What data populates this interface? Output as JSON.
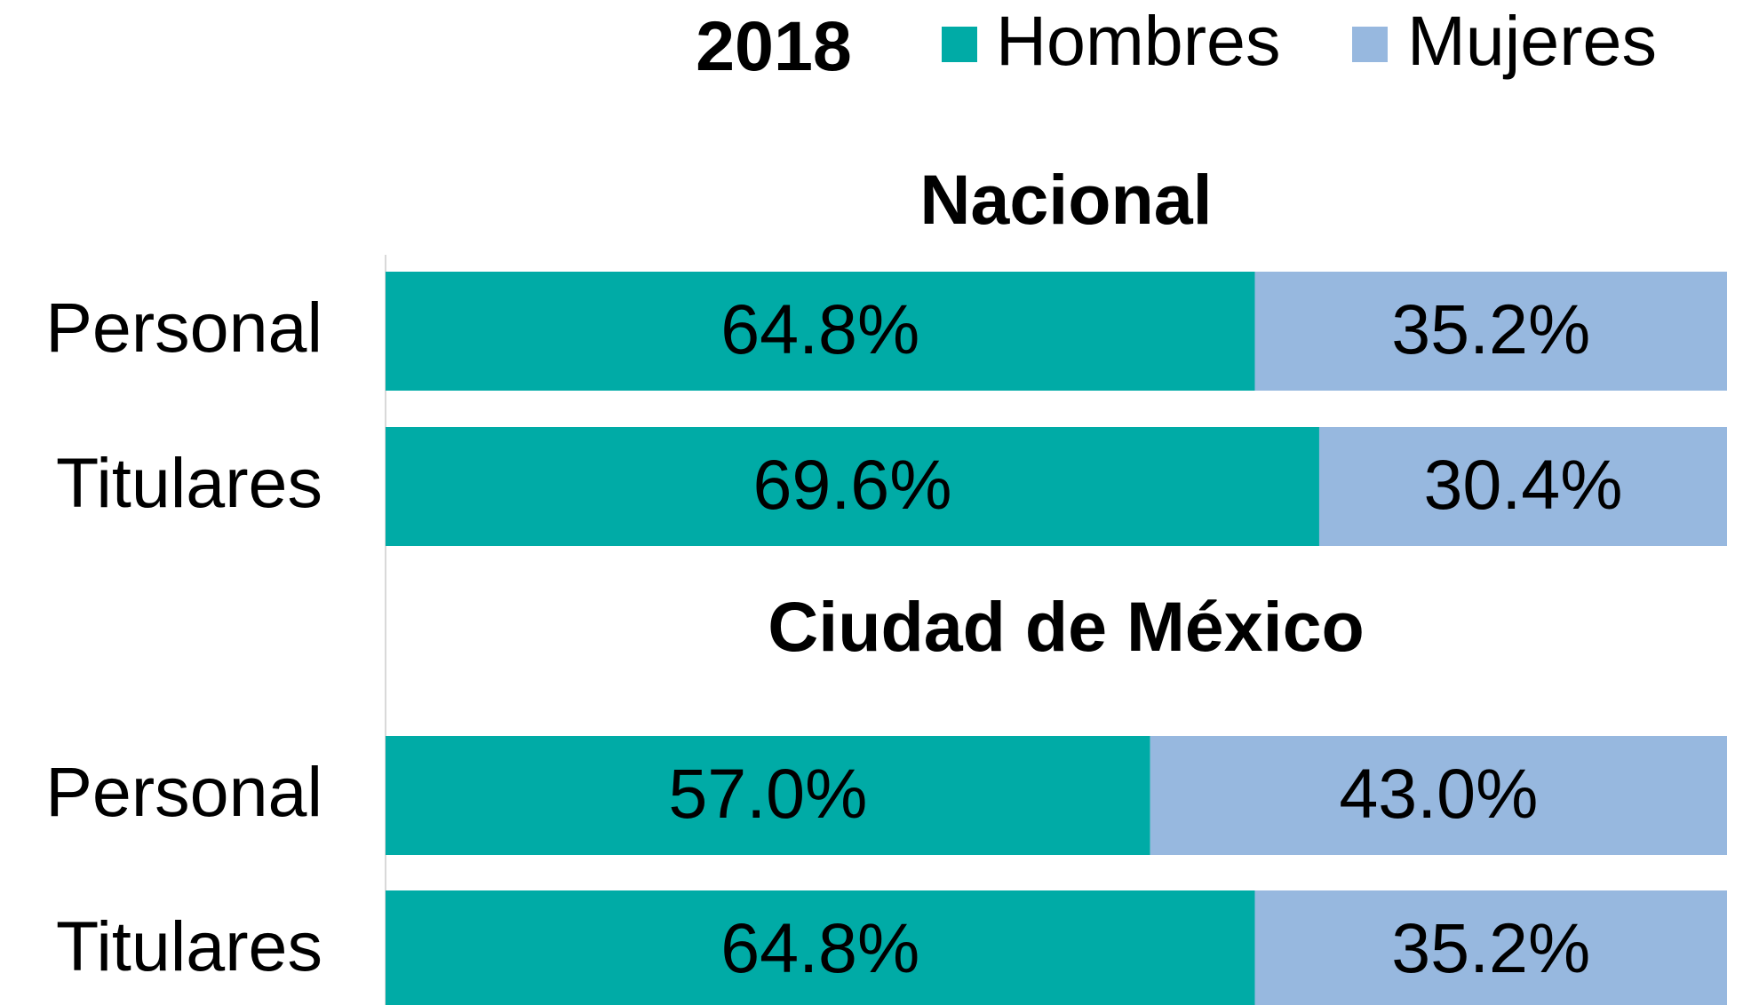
{
  "chart_data": {
    "type": "bar",
    "orientation": "horizontal",
    "stacked": true,
    "title": "2018",
    "groups": [
      {
        "name": "Nacional",
        "categories": [
          "Personal",
          "Titulares"
        ]
      },
      {
        "name": "Ciudad de México",
        "categories": [
          "Personal",
          "Titulares"
        ]
      }
    ],
    "series": [
      {
        "name": "Hombres",
        "color": "#00aba6",
        "values": [
          64.8,
          69.6,
          57.0,
          64.8
        ],
        "value_labels": [
          "64.8%",
          "69.6%",
          "57.0%",
          "64.8%"
        ]
      },
      {
        "name": "Mujeres",
        "color": "#97b8df",
        "values": [
          35.2,
          30.4,
          43.0,
          35.2
        ],
        "value_labels": [
          "35.2%",
          "30.4%",
          "43.0%",
          "35.2%"
        ]
      }
    ],
    "xlim": [
      0,
      100
    ],
    "legend": "top"
  }
}
